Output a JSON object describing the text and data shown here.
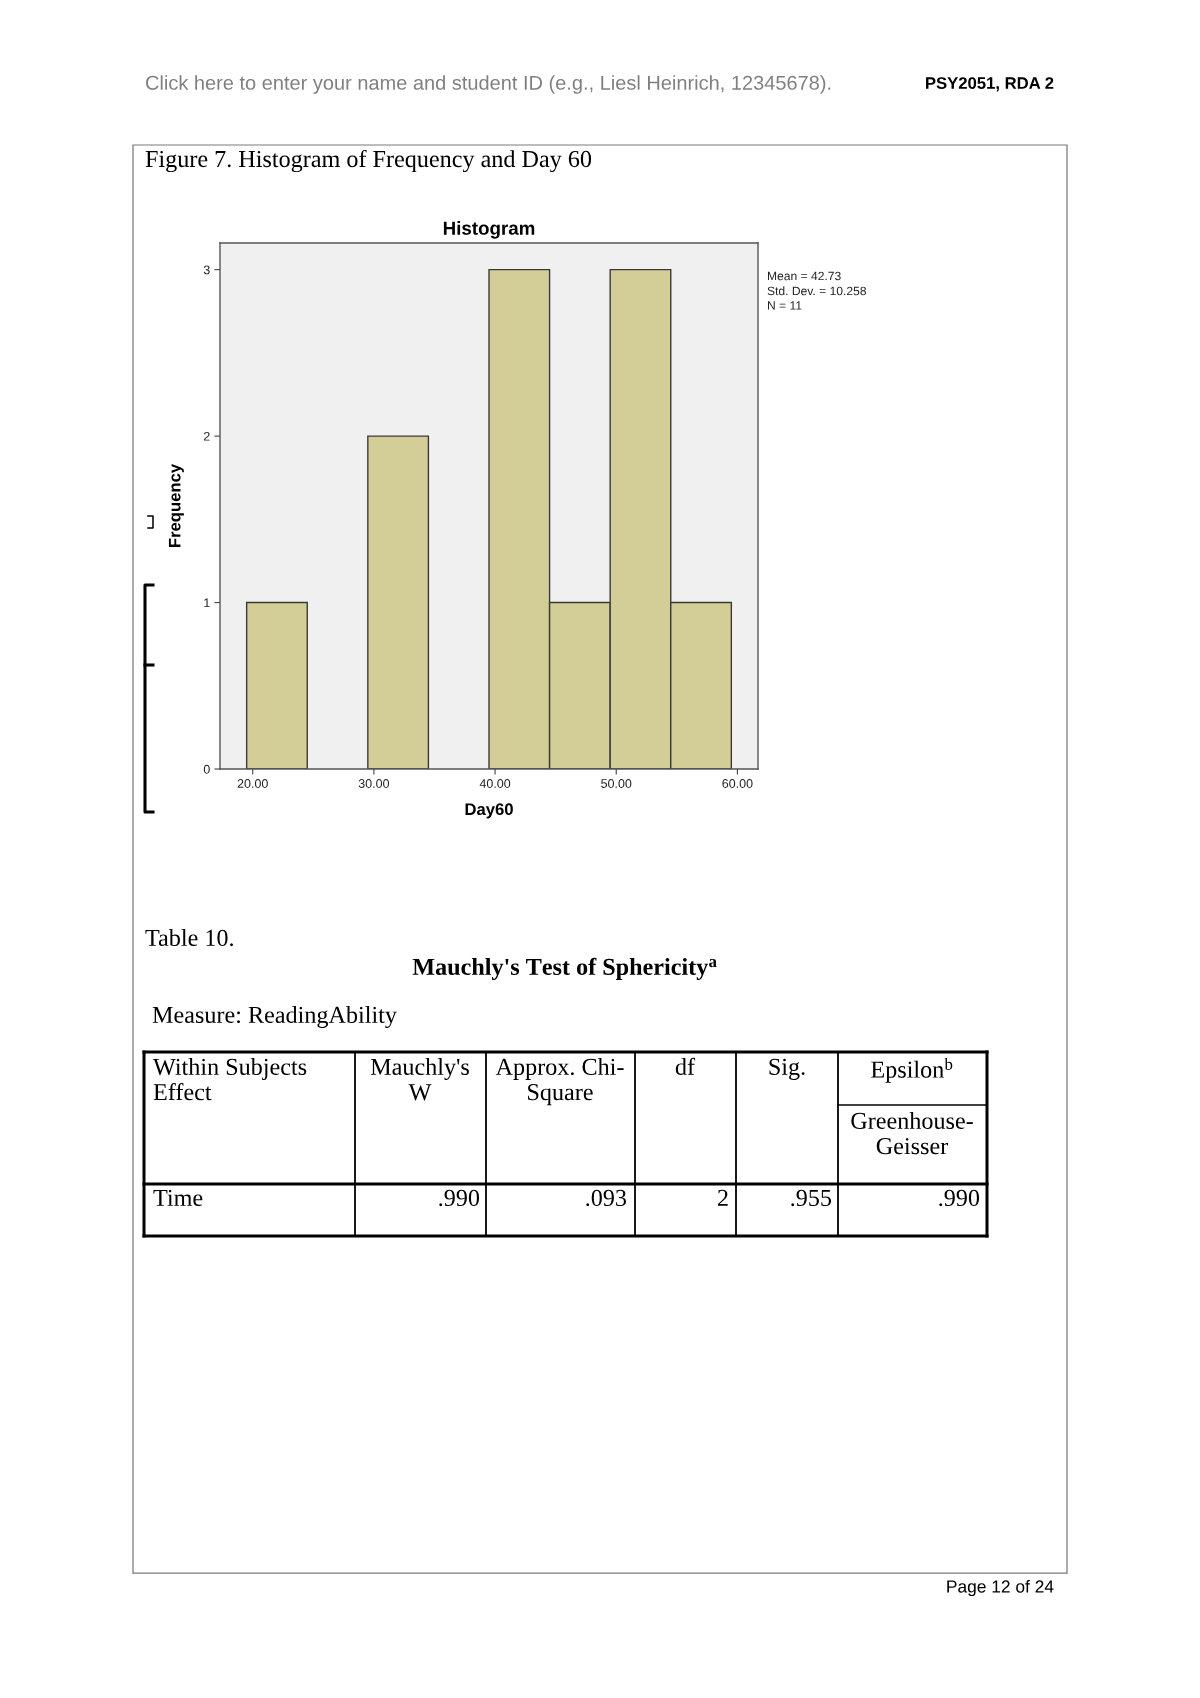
{
  "chart_data": [
    {
      "type": "histogram",
      "title": "Histogram",
      "xlabel": "Day60",
      "ylabel": "Frequency",
      "bins": [
        19.5,
        24.5,
        29.5,
        34.5,
        39.5,
        44.5,
        49.5,
        54.5,
        59.5
      ],
      "values": [
        1,
        0,
        2,
        0,
        3,
        1,
        3,
        1
      ],
      "color": "#d3ce97",
      "xlim": [
        17.3,
        61.7
      ],
      "ylim": [
        0,
        3.16
      ],
      "xticks": [
        {
          "value": 20,
          "label": "20.00"
        },
        {
          "value": 30,
          "label": "30.00"
        },
        {
          "value": 40,
          "label": "40.00"
        },
        {
          "value": 50,
          "label": "50.00"
        },
        {
          "value": 60,
          "label": "60.00"
        }
      ],
      "yticks": [
        0,
        1,
        2,
        3
      ],
      "annotations": [
        "Click here to enter your name and student ID (e.g., Liesl Heinrich, 12345678).",
        "PSY2051, RDA 2",
        "Figure 7. Histogram of Frequency and Day 60",
        "Mean = 42.73",
        "Std. Dev. = 10.258",
        "N = 11"
      ]
    },
    {
      "type": "other",
      "title": "Mauchly's Test of Sphericity$^{a}$",
      "annotations": [
        "Table 10.",
        "Measure: ReadingAbility",
        "Within Subjects\nEffect",
        "Mauchly's\nW",
        "Approx. Chi-\nSquare",
        "df",
        "Sig.",
        "Epsilon$^{b}$",
        "Greenhouse-\nGeisser",
        "Time",
        ".990",
        ".093",
        "2",
        ".955",
        ".990",
        "Page 12 of 24"
      ]
    }
  ]
}
